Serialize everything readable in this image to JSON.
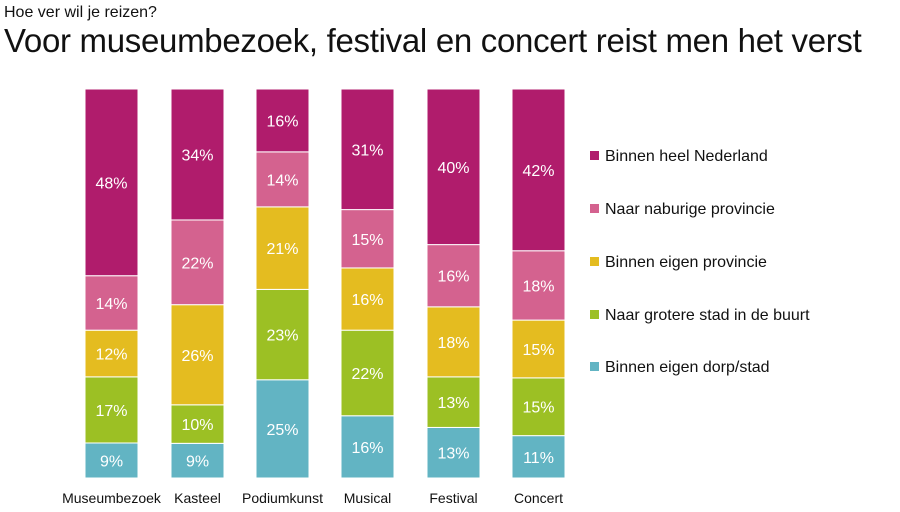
{
  "chart_data": {
    "type": "bar",
    "stacked": true,
    "subtitle": "Hoe ver wil je reizen?",
    "title": "Voor museumbezoek, festival en concert reist men het verst",
    "categories": [
      "Museumbezoek",
      "Kasteel",
      "Podiumkunst",
      "Musical",
      "Festival",
      "Concert"
    ],
    "unit": "%",
    "legend_position": "right",
    "grid": false,
    "series": [
      {
        "name": "Binnen eigen dorp/stad",
        "color": "#62b4c3",
        "values": [
          9,
          9,
          25,
          16,
          13,
          11
        ]
      },
      {
        "name": "Naar grotere stad in de buurt",
        "color": "#9cc024",
        "values": [
          17,
          10,
          23,
          22,
          13,
          15
        ]
      },
      {
        "name": "Binnen eigen provincie",
        "color": "#e4bc20",
        "values": [
          12,
          26,
          21,
          16,
          18,
          15
        ]
      },
      {
        "name": "Naar naburige provincie",
        "color": "#d4628f",
        "values": [
          14,
          22,
          14,
          15,
          16,
          18
        ]
      },
      {
        "name": "Binnen heel Nederland",
        "color": "#b01c6c",
        "values": [
          48,
          34,
          16,
          31,
          40,
          42
        ]
      }
    ]
  }
}
